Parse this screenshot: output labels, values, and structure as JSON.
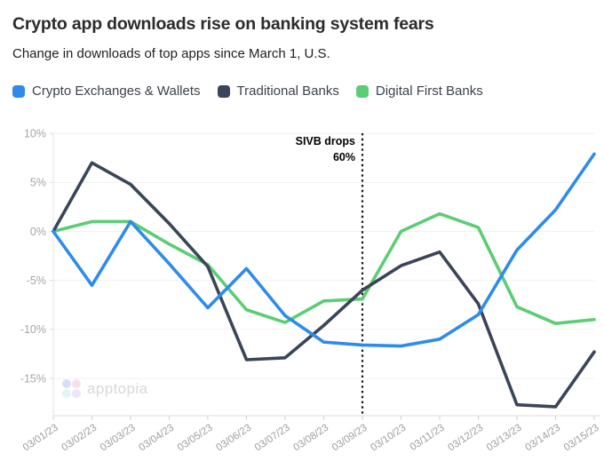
{
  "header": {
    "title": "Crypto app downloads rise on banking system fears",
    "subtitle": "Change in downloads of top apps since March 1, U.S."
  },
  "legend": [
    {
      "label": "Crypto Exchanges & Wallets",
      "color": "#2d8ceb"
    },
    {
      "label": "Traditional Banks",
      "color": "#3b4559"
    },
    {
      "label": "Digital First Banks",
      "color": "#5bcd73"
    }
  ],
  "watermark": {
    "text": "apptopia",
    "logo_colors": [
      "#a9b8ee",
      "#f4bcca",
      "#c5e8da",
      "#d6c9f3"
    ]
  },
  "chart_data": {
    "type": "line",
    "title": "Crypto app downloads rise on banking system fears",
    "subtitle": "Change in downloads of top apps since March 1, U.S.",
    "x": [
      "03/01/23",
      "03/02/23",
      "03/03/23",
      "03/04/23",
      "03/05/23",
      "03/06/23",
      "03/07/23",
      "03/08/23",
      "03/09/23",
      "03/10/23",
      "03/11/23",
      "03/12/23",
      "03/13/23",
      "03/14/23",
      "03/15/23"
    ],
    "series": [
      {
        "name": "Crypto Exchanges & Wallets",
        "color": "#2d8ceb",
        "values": [
          0,
          -5.5,
          1,
          -3.3,
          -7.8,
          -3.8,
          -8.6,
          -11.3,
          -11.6,
          -11.7,
          -11,
          -8.5,
          -1.9,
          2.2,
          7.9
        ]
      },
      {
        "name": "Traditional Banks",
        "color": "#3b4559",
        "values": [
          0,
          7,
          4.8,
          0.8,
          -3.6,
          -13.1,
          -12.9,
          -9.6,
          -6,
          -3.5,
          -2.1,
          -7.4,
          -17.7,
          -17.9,
          -12.3
        ]
      },
      {
        "name": "Digital First Banks",
        "color": "#5bcd73",
        "values": [
          0,
          1,
          1,
          -1.3,
          -3.4,
          -8,
          -9.3,
          -7.1,
          -6.9,
          0,
          1.8,
          0.4,
          -7.7,
          -9.4,
          -9
        ]
      }
    ],
    "y_ticks": [
      10,
      5,
      0,
      -5,
      -10,
      -15
    ],
    "y_tick_suffix": "%",
    "ylim": [
      -18.9,
      10.2
    ],
    "grid": "horizontal",
    "legend_position": "top",
    "annotation": {
      "line1": "SIVB drops",
      "line2": "60%",
      "x": "03/09/23"
    }
  }
}
